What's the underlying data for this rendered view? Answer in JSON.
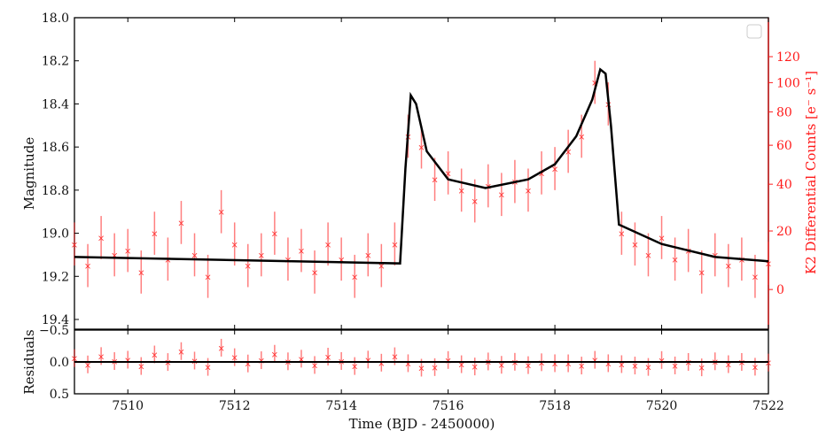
{
  "chart_data": [
    {
      "type": "scatter",
      "panel": "main",
      "xlabel": "Time (BJD - 2450000)",
      "ylabel": "Magnitude",
      "y2label": "K2 Differential Counts [e⁻ s⁻¹]",
      "xlim": [
        7509,
        7522
      ],
      "ylim": [
        18.0,
        19.4
      ],
      "y_inverted": true,
      "xticks": [
        7510,
        7512,
        7514,
        7516,
        7518,
        7520,
        7522
      ],
      "yticks": [
        "18.0",
        "18.2",
        "18.4",
        "18.6",
        "18.8",
        "19.0",
        "19.2",
        "19.4"
      ],
      "y2ticks": [
        0,
        20,
        40,
        60,
        80,
        100,
        120
      ],
      "legend": "top-right, empty",
      "grid": false,
      "colors": {
        "data": "#ff2a2a",
        "model": "#000000",
        "right_axis": "#ff1a1a"
      },
      "observations": {
        "x": [
          7509.0,
          7509.25,
          7509.5,
          7509.75,
          7510.0,
          7510.25,
          7510.5,
          7510.75,
          7511.0,
          7511.25,
          7511.5,
          7511.75,
          7512.0,
          7512.25,
          7512.5,
          7512.75,
          7513.0,
          7513.25,
          7513.5,
          7513.75,
          7514.0,
          7514.25,
          7514.5,
          7514.75,
          7515.0,
          7515.25,
          7515.5,
          7515.75,
          7516.0,
          7516.25,
          7516.5,
          7516.75,
          7517.0,
          7517.25,
          7517.5,
          7517.75,
          7518.0,
          7518.25,
          7518.5,
          7518.75,
          7519.0,
          7519.25,
          7519.5,
          7519.75,
          7520.0,
          7520.25,
          7520.5,
          7520.75,
          7521.0,
          7521.25,
          7521.5,
          7521.75,
          7522.0
        ],
        "y": [
          19.05,
          19.15,
          19.02,
          19.1,
          19.08,
          19.18,
          19.0,
          19.12,
          18.95,
          19.1,
          19.2,
          18.9,
          19.05,
          19.15,
          19.1,
          19.0,
          19.12,
          19.08,
          19.18,
          19.05,
          19.12,
          19.2,
          19.1,
          19.15,
          19.05,
          18.55,
          18.6,
          18.75,
          18.72,
          18.8,
          18.85,
          18.78,
          18.82,
          18.76,
          18.8,
          18.72,
          18.7,
          18.62,
          18.55,
          18.3,
          18.4,
          19.0,
          19.05,
          19.1,
          19.02,
          19.12,
          19.08,
          19.18,
          19.1,
          19.15,
          19.12,
          19.2,
          19.14
        ],
        "yerr": 0.1
      },
      "model": {
        "x": [
          7509.0,
          7515.1,
          7515.2,
          7515.3,
          7515.4,
          7515.6,
          7516.0,
          7516.7,
          7517.5,
          7518.0,
          7518.4,
          7518.7,
          7518.85,
          7518.95,
          7519.05,
          7519.2,
          7520.0,
          7521.0,
          7522.0
        ],
        "y": [
          19.11,
          19.14,
          18.7,
          18.36,
          18.4,
          18.62,
          18.75,
          18.79,
          18.75,
          18.68,
          18.55,
          18.38,
          18.24,
          18.26,
          18.5,
          18.96,
          19.05,
          19.11,
          19.13
        ]
      }
    },
    {
      "type": "scatter",
      "panel": "residuals",
      "ylabel": "Residuals",
      "xlabel": "Time (BJD - 2450000)",
      "xlim": [
        7509,
        7522
      ],
      "ylim": [
        -0.5,
        0.5
      ],
      "y_inverted": true,
      "yticks": [
        "−0.5",
        "0.0",
        "0.5"
      ],
      "xticks": [
        7510,
        7512,
        7514,
        7516,
        7518,
        7520,
        7522
      ],
      "zero_line": 0
    }
  ]
}
